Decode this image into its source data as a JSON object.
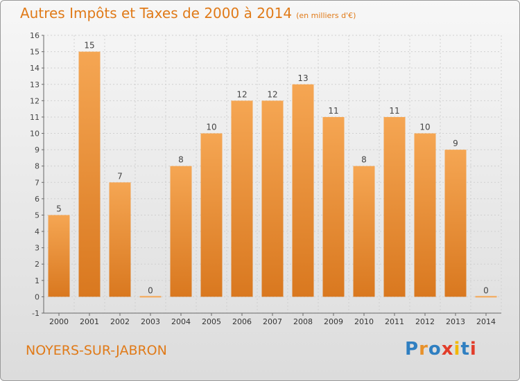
{
  "header": {
    "title": "Autres Impôts et Taxes de 2000 à 2014",
    "unit_note": "(en milliers d'€)"
  },
  "footer": {
    "commune": "NOYERS-SUR-JABRON",
    "brand": "Proxiti",
    "brand_letters": [
      "P",
      "r",
      "o",
      "x",
      "i",
      "t",
      "i"
    ],
    "brand_colors": [
      "#2f7fc1",
      "#e8912a",
      "#2f7fc1",
      "#e23d2a",
      "#f2b705",
      "#2f7fc1",
      "#e23d2a"
    ]
  },
  "colors": {
    "accent": "#e07a18",
    "bar_top": "#f5a653",
    "bar_bottom": "#d9781f"
  },
  "chart_data": {
    "type": "bar",
    "title": "Autres Impôts et Taxes de 2000 à 2014",
    "subtitle": "(en milliers d'€)",
    "xlabel": "",
    "ylabel": "",
    "categories": [
      "2000",
      "2001",
      "2002",
      "2003",
      "2004",
      "2005",
      "2006",
      "2007",
      "2008",
      "2009",
      "2010",
      "2011",
      "2012",
      "2013",
      "2014"
    ],
    "values": [
      5,
      15,
      7,
      0,
      8,
      10,
      12,
      12,
      13,
      11,
      8,
      11,
      10,
      9,
      0
    ],
    "data_labels": [
      "5",
      "15",
      "7",
      "0",
      "8",
      "10",
      "12",
      "12",
      "13",
      "11",
      "8",
      "11",
      "10",
      "9",
      "0"
    ],
    "ylim": [
      -1,
      16
    ],
    "yticks": [
      -1,
      0,
      1,
      2,
      3,
      4,
      5,
      6,
      7,
      8,
      9,
      10,
      11,
      12,
      13,
      14,
      15,
      16
    ],
    "grid": true,
    "legend": "none"
  }
}
